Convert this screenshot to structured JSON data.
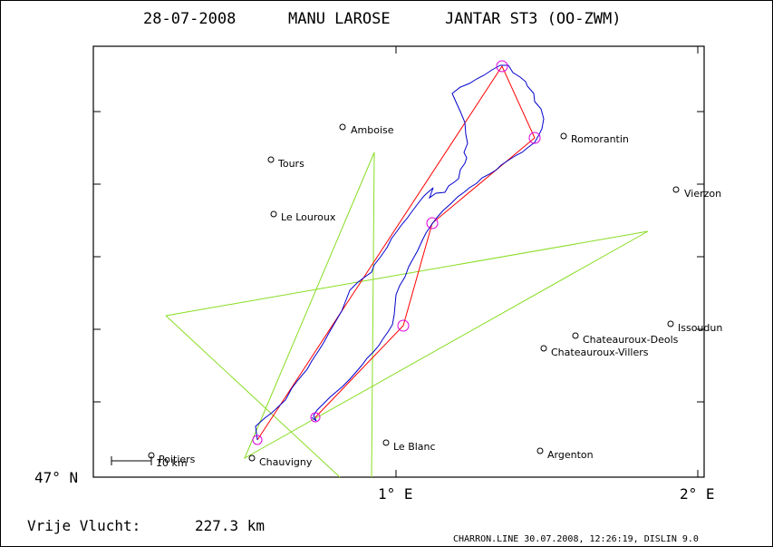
{
  "header": {
    "date": "28-07-2008",
    "pilot": "MANU LAROSE",
    "glider": "JANTAR ST3 (OO-ZWM)"
  },
  "axes": {
    "lat_label": "47° N",
    "lon1_label": "1° E",
    "lon2_label": "2° E"
  },
  "scale_bar": {
    "label": "10 km"
  },
  "places": [
    {
      "id": "amboise",
      "name": "Amboise"
    },
    {
      "id": "tours",
      "name": "Tours"
    },
    {
      "id": "le-louroux",
      "name": "Le Louroux"
    },
    {
      "id": "romorantin",
      "name": "Romorantin"
    },
    {
      "id": "vierzon",
      "name": "Vierzon"
    },
    {
      "id": "issoudun",
      "name": "Issoudun"
    },
    {
      "id": "chateauroux-deols",
      "name": "Chateauroux-Deols"
    },
    {
      "id": "chateauroux-villers",
      "name": "Chateauroux-Villers"
    },
    {
      "id": "le-blanc",
      "name": "Le Blanc"
    },
    {
      "id": "argenton",
      "name": "Argenton"
    },
    {
      "id": "poitiers",
      "name": "Poitiers"
    },
    {
      "id": "chauvigny",
      "name": "Chauvigny"
    }
  ],
  "footer": {
    "distance_label": "Vrije Vlucht:",
    "distance_value": "227.3 km",
    "credits": "CHARRON.LINE 30.07.2008, 12:26:19, DISLIN 9.0"
  },
  "colors": {
    "track": "#0000cc",
    "task": "#ff0000",
    "turnpoint": "#dd00dd",
    "airspace": "#88dd22",
    "frame": "#000000"
  }
}
